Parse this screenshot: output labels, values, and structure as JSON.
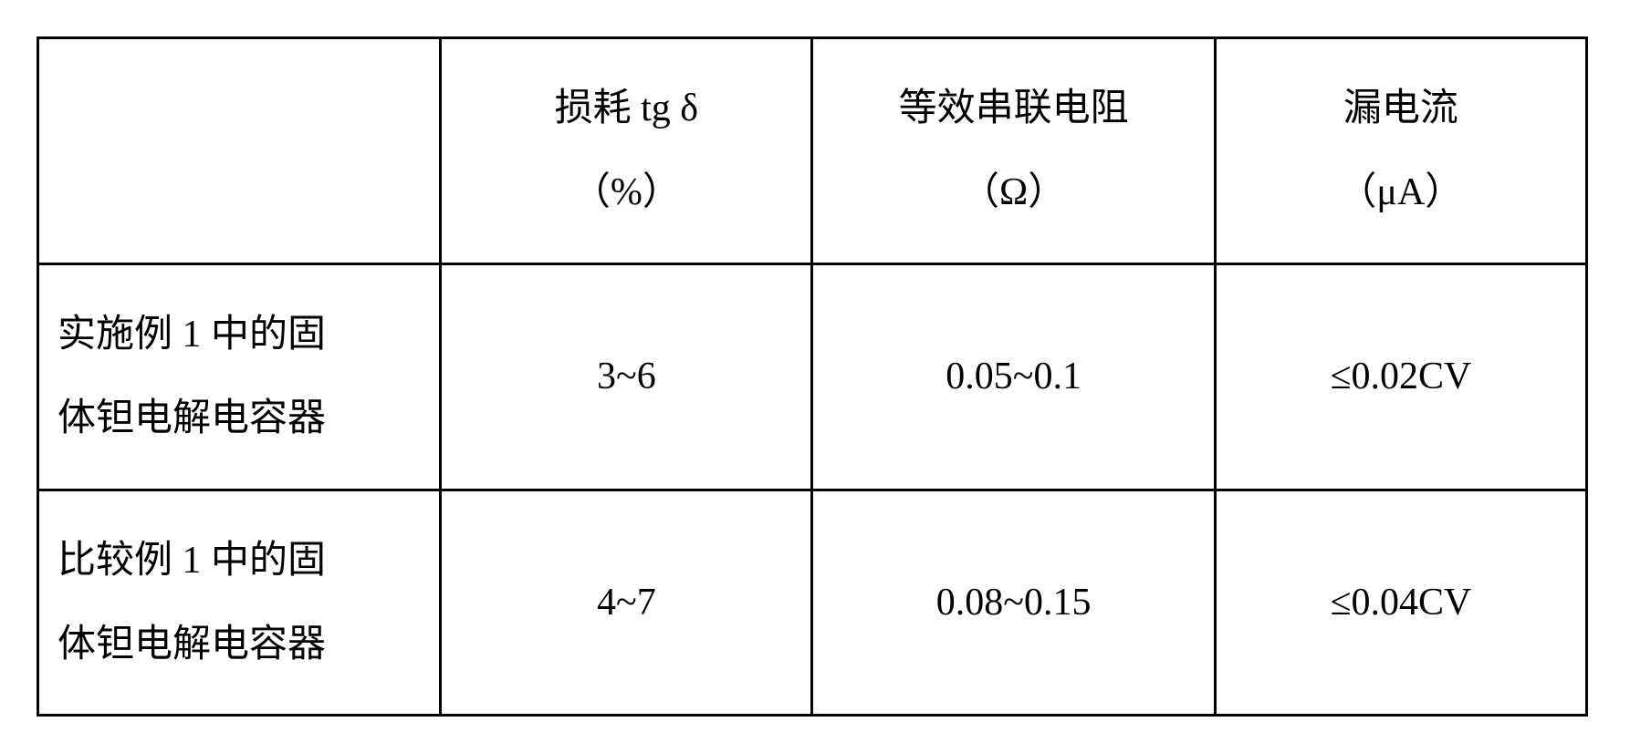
{
  "table": {
    "columns": [
      {
        "label": "",
        "unit": ""
      },
      {
        "label": "损耗 tg δ",
        "unit": "（%）"
      },
      {
        "label": "等效串联电阻",
        "unit": "（Ω）"
      },
      {
        "label": "漏电流",
        "unit": "（μA）"
      }
    ],
    "rows": [
      {
        "label_line1": "实施例 1 中的固",
        "label_line2": "体钽电解电容器",
        "loss": "3~6",
        "esr": "0.05~0.1",
        "leakage": "≤0.02CV"
      },
      {
        "label_line1": "比较例 1 中的固",
        "label_line2": "体钽电解电容器",
        "loss": "4~7",
        "esr": "0.08~0.15",
        "leakage": "≤0.04CV"
      }
    ],
    "styling": {
      "border_color": "#000000",
      "border_width": 3,
      "background_color": "#ffffff",
      "text_color": "#000000",
      "font_size": 42,
      "font_family": "SimSun"
    }
  }
}
